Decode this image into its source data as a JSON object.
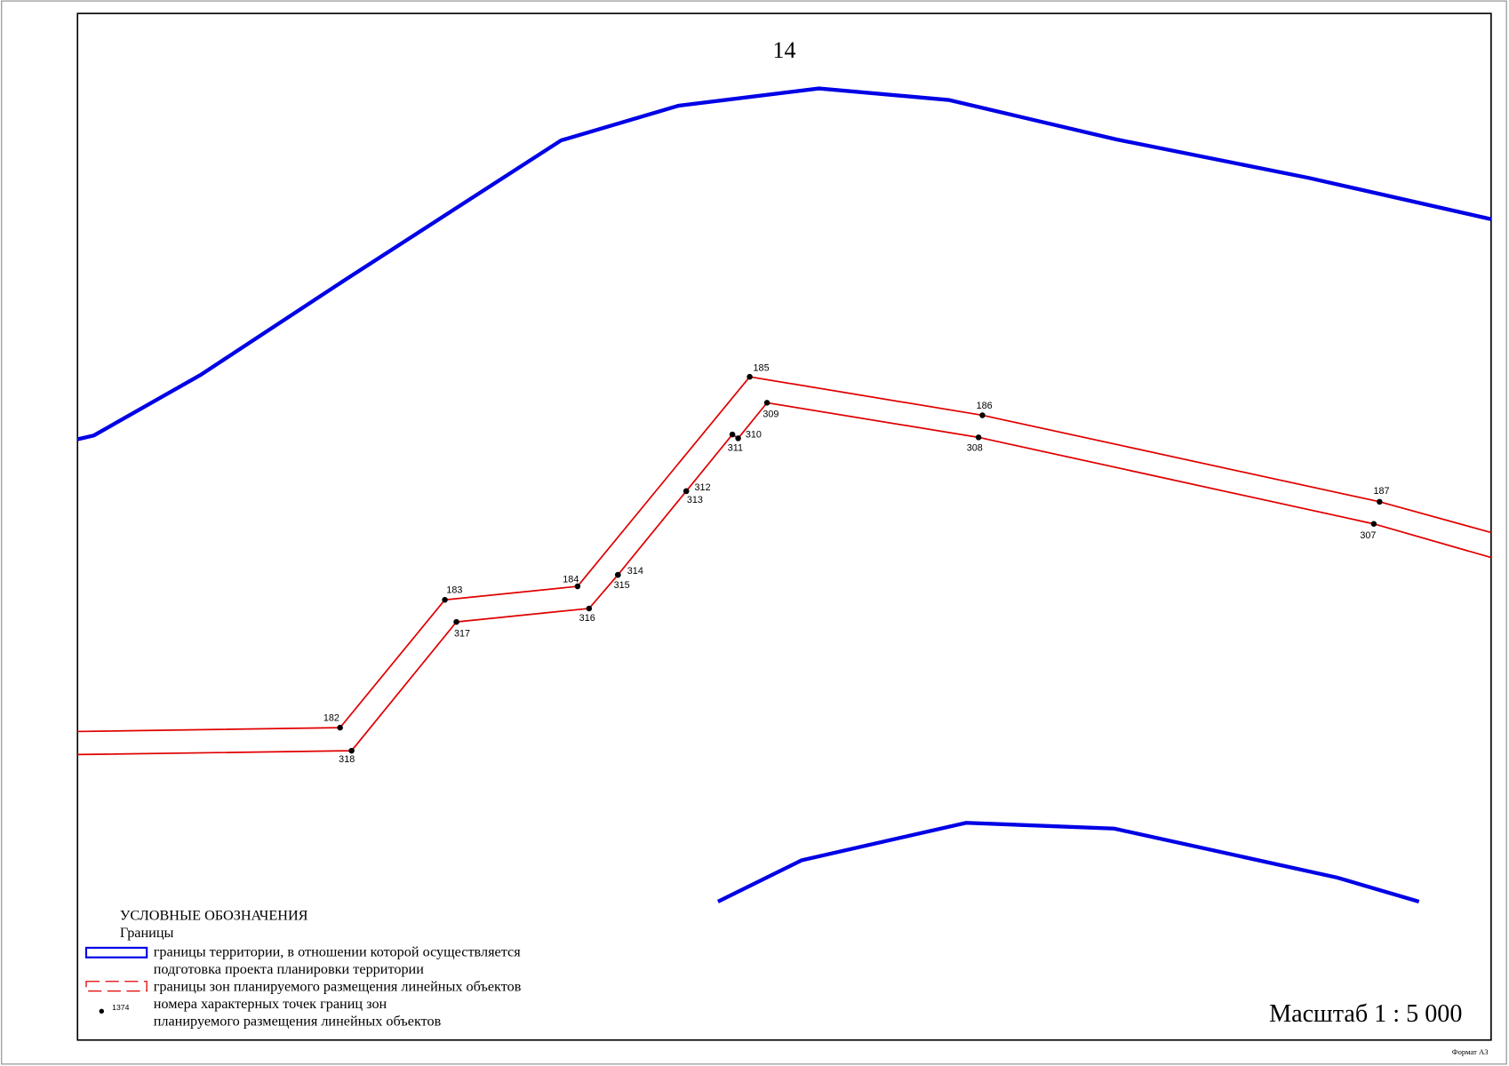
{
  "sheet_number": "14",
  "points": [
    {
      "label": "182"
    },
    {
      "label": "183"
    },
    {
      "label": "184"
    },
    {
      "label": "185"
    },
    {
      "label": "186"
    },
    {
      "label": "187"
    },
    {
      "label": "318"
    },
    {
      "label": "317"
    },
    {
      "label": "316"
    },
    {
      "label": "315"
    },
    {
      "label": "314"
    },
    {
      "label": "313"
    },
    {
      "label": "312"
    },
    {
      "label": "311"
    },
    {
      "label": "310"
    },
    {
      "label": "309"
    },
    {
      "label": "308"
    },
    {
      "label": "307"
    }
  ],
  "legend": {
    "title": "УСЛОВНЫЕ ОБОЗНАЧЕНИЯ",
    "subtitle": "Границы",
    "items": [
      {
        "lines": [
          "границы территории, в отношении которой осуществляется",
          "подготовка проекта планировки территории"
        ]
      },
      {
        "lines": [
          "границы зон планируемого размещения линейных объектов"
        ]
      },
      {
        "sample_label": "1374",
        "lines": [
          "номера характерных точек границ зон",
          "планируемого размещения линейных объектов"
        ]
      }
    ]
  },
  "scale": "Масштаб 1 : 5 000",
  "format": "Формат А3"
}
